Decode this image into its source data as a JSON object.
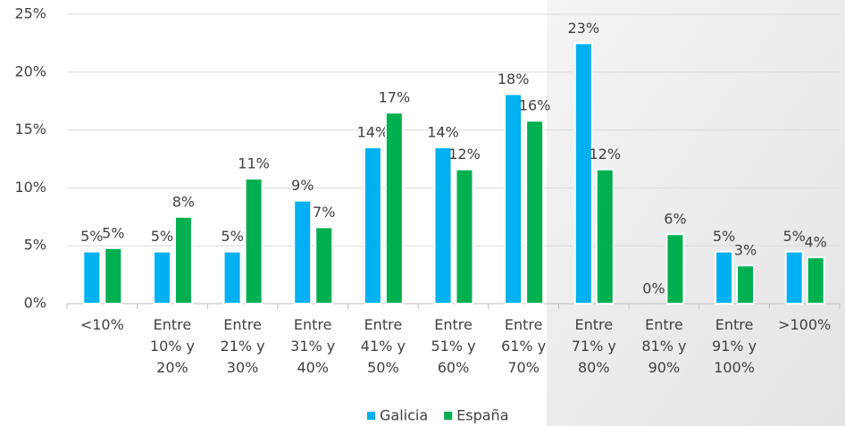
{
  "chart_data": {
    "type": "bar",
    "categories": [
      "<10%",
      "Entre 10% y 20%",
      "Entre 21% y 30%",
      "Entre 31% y 40%",
      "Entre 41% y 50%",
      "Entre 51% y 60%",
      "Entre 61% y 70%",
      "Entre 71% y 80%",
      "Entre 81% y 90%",
      "Entre 91% y 100%",
      ">100%"
    ],
    "series": [
      {
        "name": "Galicia",
        "color": "#00b0f0",
        "values": [
          4.5,
          4.5,
          4.5,
          8.9,
          13.5,
          13.5,
          18.1,
          22.5,
          0,
          4.5,
          4.5
        ],
        "value_labels": [
          "5%",
          "5%",
          "5%",
          "9%",
          "14%",
          "14%",
          "18%",
          "23%",
          "0%",
          "5%",
          "5%"
        ]
      },
      {
        "name": "España",
        "color": "#00b050",
        "values": [
          4.8,
          7.5,
          10.8,
          6.6,
          16.5,
          11.6,
          15.8,
          11.6,
          6.0,
          3.3,
          4.0
        ],
        "value_labels": [
          "5%",
          "8%",
          "11%",
          "7%",
          "17%",
          "12%",
          "16%",
          "12%",
          "6%",
          "3%",
          "4%"
        ]
      }
    ],
    "ylim": [
      0,
      25
    ],
    "yticks": [
      {
        "value": 0,
        "label": "0%"
      },
      {
        "value": 5,
        "label": "5%"
      },
      {
        "value": 10,
        "label": "10%"
      },
      {
        "value": 15,
        "label": "15%"
      },
      {
        "value": 20,
        "label": "20%"
      },
      {
        "value": 25,
        "label": "25%"
      }
    ],
    "grid": true,
    "legend": "bottom"
  }
}
